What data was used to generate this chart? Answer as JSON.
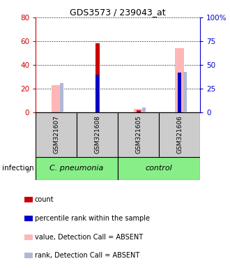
{
  "title": "GDS3573 / 239043_at",
  "samples": [
    "GSM321607",
    "GSM321608",
    "GSM321605",
    "GSM321606"
  ],
  "count_values": [
    0,
    58,
    2,
    0
  ],
  "rank_values": [
    0,
    40,
    0,
    42
  ],
  "absent_value_values": [
    29,
    0,
    4,
    68
  ],
  "absent_rank_values": [
    31,
    0,
    5,
    43
  ],
  "left_ylim": [
    0,
    80
  ],
  "right_ylim": [
    0,
    100
  ],
  "left_yticks": [
    0,
    20,
    40,
    60,
    80
  ],
  "right_yticks": [
    0,
    25,
    50,
    75,
    100
  ],
  "right_yticklabels": [
    "0",
    "25",
    "50",
    "75",
    "100%"
  ],
  "left_color": "#cc0000",
  "right_color": "#0000cc",
  "count_color": "#cc0000",
  "rank_color": "#0000cc",
  "absent_value_color": "#ffb6b6",
  "absent_rank_color": "#b0b8d8",
  "bg_color": "#cccccc",
  "pneumonia_color": "#88ee88",
  "control_color": "#88ee88",
  "legend_items": [
    {
      "label": "count",
      "color": "#cc0000"
    },
    {
      "label": "percentile rank within the sample",
      "color": "#0000cc"
    },
    {
      "label": "value, Detection Call = ABSENT",
      "color": "#ffb6b6"
    },
    {
      "label": "rank, Detection Call = ABSENT",
      "color": "#b0b8d8"
    }
  ]
}
